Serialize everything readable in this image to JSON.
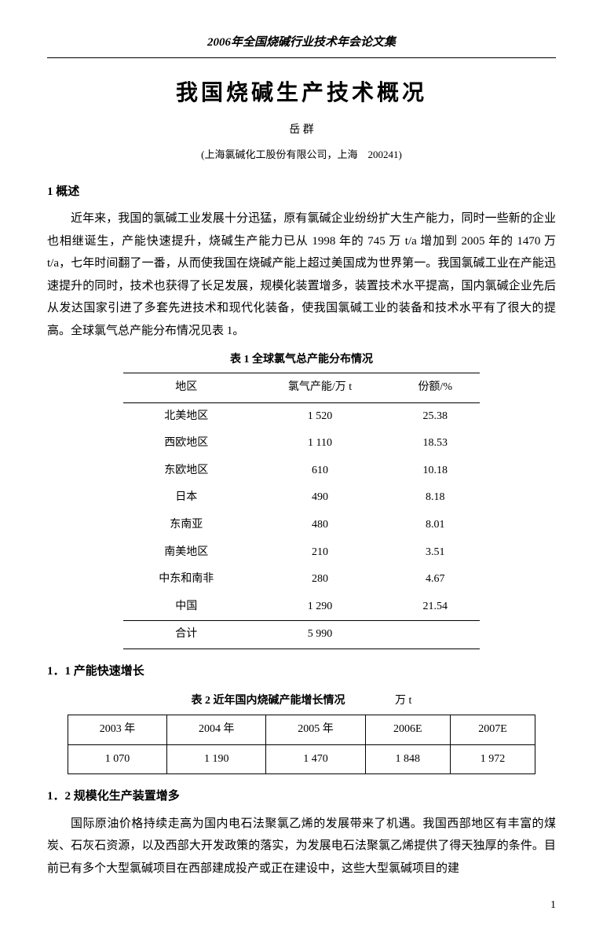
{
  "header": "2006年全国烧碱行业技术年会论文集",
  "title": "我国烧碱生产技术概况",
  "author": "岳 群",
  "affiliation": "(上海氯碱化工股份有限公司，上海　200241)",
  "section1": "1 概述",
  "para1": "近年来，我国的氯碱工业发展十分迅猛，原有氯碱企业纷纷扩大生产能力，同时一些新的企业也相继诞生，产能快速提升，烧碱生产能力已从 1998 年的 745 万 t/a 增加到 2005 年的 1470 万 t/a，七年时间翻了一番，从而使我国在烧碱产能上超过美国成为世界第一。我国氯碱工业在产能迅速提升的同时，技术也获得了长足发展，规模化装置增多，装置技术水平提高，国内氯碱企业先后从发达国家引进了多套先进技术和现代化装备，使我国氯碱工业的装备和技术水平有了很大的提高。全球氯气总产能分布情况见表 1。",
  "table1": {
    "caption": "表 1  全球氯气总产能分布情况",
    "columns": [
      "地区",
      "氯气产能/万 t",
      "份额/%"
    ],
    "rows": [
      [
        "北美地区",
        "1 520",
        "25.38"
      ],
      [
        "西欧地区",
        "1 110",
        "18.53"
      ],
      [
        "东欧地区",
        "610",
        "10.18"
      ],
      [
        "日本",
        "490",
        "8.18"
      ],
      [
        "东南亚",
        "480",
        "8.01"
      ],
      [
        "南美地区",
        "210",
        "3.51"
      ],
      [
        "中东和南非",
        "280",
        "4.67"
      ],
      [
        "中国",
        "1 290",
        "21.54"
      ],
      [
        "合计",
        "5 990",
        ""
      ]
    ]
  },
  "section1_1": "1．1 产能快速增长",
  "table2": {
    "caption": "表 2  近年国内烧碱产能增长情况",
    "unit": "万 t",
    "columns": [
      "2003 年",
      "2004 年",
      "2005 年",
      "2006E",
      "2007E"
    ],
    "rows": [
      [
        "1 070",
        "1 190",
        "1 470",
        "1 848",
        "1 972"
      ]
    ]
  },
  "section1_2": "1．2 规模化生产装置增多",
  "para2": "国际原油价格持续走高为国内电石法聚氯乙烯的发展带来了机遇。我国西部地区有丰富的煤炭、石灰石资源，以及西部大开发政策的落实，为发展电石法聚氯乙烯提供了得天独厚的条件。目前已有多个大型氯碱项目在西部建成投产或正在建设中，这些大型氯碱项目的建",
  "pagenum": "1"
}
